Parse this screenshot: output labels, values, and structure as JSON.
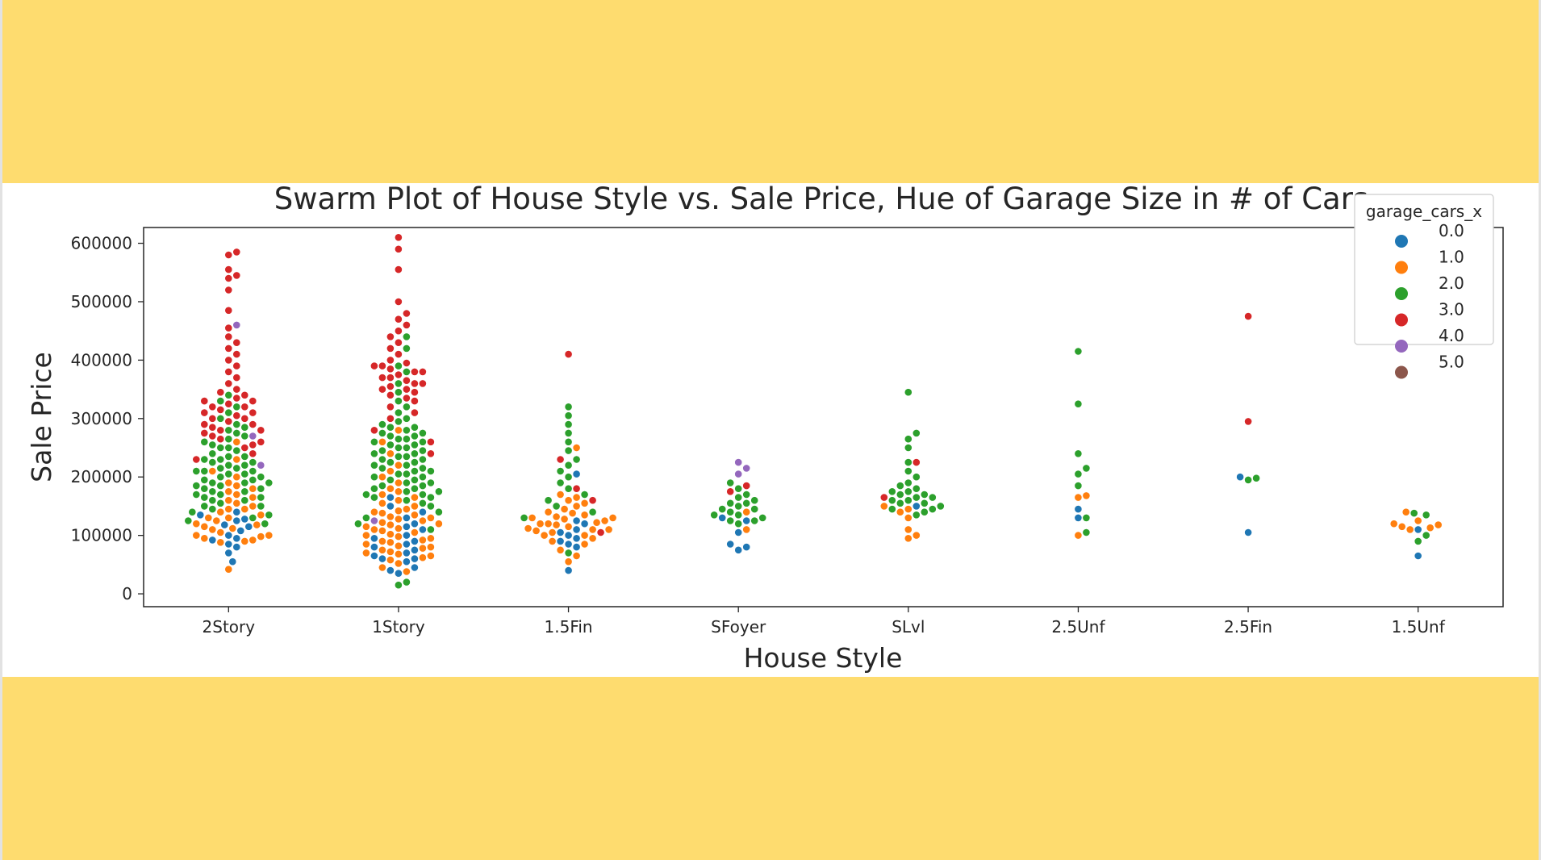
{
  "chart_data": {
    "type": "scatter",
    "subtype": "swarm",
    "title": "Swarm Plot of House Style vs. Sale Price, Hue of Garage Size in # of Cars",
    "xlabel": "House Style",
    "ylabel": "Sale Price",
    "categories": [
      "2Story",
      "1Story",
      "1.5Fin",
      "SFoyer",
      "SLvl",
      "2.5Unf",
      "2.5Fin",
      "1.5Unf"
    ],
    "yticks": [
      0,
      100000,
      200000,
      300000,
      400000,
      500000,
      600000
    ],
    "ytick_labels": [
      "0",
      "100000",
      "200000",
      "300000",
      "400000",
      "500000",
      "600000"
    ],
    "ylim": [
      -22000,
      627000
    ],
    "grid": false,
    "legend": {
      "title": "garage_cars_x",
      "placement": "top-right",
      "entries": [
        {
          "label": "0.0",
          "color": "#1f77b4"
        },
        {
          "label": "1.0",
          "color": "#ff7f0e"
        },
        {
          "label": "2.0",
          "color": "#2ca02c"
        },
        {
          "label": "3.0",
          "color": "#d62728"
        },
        {
          "label": "4.0",
          "color": "#9467bd"
        },
        {
          "label": "5.0",
          "color": "#8c564b"
        }
      ]
    },
    "distribution": [
      {
        "category": "2Story",
        "groups": [
          {
            "hue": "0.0",
            "values": [
              55000,
              70000,
              80000,
              92000,
              100000,
              108000,
              115000,
              125000,
              135000,
              140000,
              128000,
              118000,
              95000,
              85000
            ]
          },
          {
            "hue": "1.0",
            "values": [
              42000,
              88000,
              90000,
              92000,
              95000,
              98000,
              100000,
              105000,
              110000,
              112000,
              118000,
              120000,
              125000,
              130000,
              135000,
              140000,
              145000,
              150000,
              155000,
              160000,
              165000,
              170000,
              175000,
              180000,
              185000,
              190000,
              200000,
              210000,
              230000,
              260000,
              100000,
              115000,
              130000,
              145000
            ]
          },
          {
            "hue": "2.0",
            "values": [
              120000,
              125000,
              130000,
              135000,
              140000,
              145000,
              150000,
              155000,
              160000,
              165000,
              170000,
              175000,
              180000,
              185000,
              190000,
              195000,
              200000,
              205000,
              210000,
              215000,
              220000,
              225000,
              230000,
              235000,
              240000,
              245000,
              250000,
              255000,
              260000,
              265000,
              270000,
              275000,
              280000,
              285000,
              290000,
              300000,
              310000,
              320000,
              330000,
              340000,
              170000,
              180000,
              190000,
              200000,
              210000,
              220000,
              160000,
              175000,
              185000,
              195000,
              205000,
              215000,
              225000,
              235000,
              150000,
              165000,
              190000,
              210000,
              230000,
              250000
            ]
          },
          {
            "hue": "3.0",
            "values": [
              230000,
              240000,
              250000,
              255000,
              260000,
              265000,
              270000,
              275000,
              280000,
              285000,
              290000,
              295000,
              300000,
              305000,
              310000,
              315000,
              320000,
              325000,
              330000,
              335000,
              340000,
              345000,
              350000,
              360000,
              370000,
              380000,
              390000,
              400000,
              410000,
              420000,
              430000,
              440000,
              455000,
              485000,
              520000,
              540000,
              555000,
              585000,
              580000,
              545000,
              300000,
              310000,
              320000,
              330000,
              280000,
              290000
            ]
          },
          {
            "hue": "4.0",
            "values": [
              220000,
              270000,
              460000
            ]
          }
        ]
      },
      {
        "category": "1Story",
        "groups": [
          {
            "hue": "0.0",
            "values": [
              35000,
              40000,
              45000,
              55000,
              60000,
              65000,
              70000,
              80000,
              85000,
              90000,
              95000,
              100000,
              110000,
              115000,
              120000,
              130000,
              140000,
              150000,
              165000,
              60000,
              75000
            ]
          },
          {
            "hue": "1.0",
            "values": [
              38000,
              45000,
              52000,
              58000,
              62000,
              65000,
              68000,
              70000,
              72000,
              75000,
              78000,
              80000,
              82000,
              85000,
              88000,
              90000,
              92000,
              95000,
              98000,
              100000,
              102000,
              105000,
              108000,
              110000,
              112000,
              115000,
              118000,
              120000,
              122000,
              125000,
              128000,
              130000,
              132000,
              135000,
              138000,
              140000,
              142000,
              145000,
              150000,
              155000,
              160000,
              165000,
              170000,
              175000,
              180000,
              190000,
              200000,
              210000,
              220000,
              240000,
              260000,
              280000
            ]
          },
          {
            "hue": "2.0",
            "values": [
              15000,
              20000,
              110000,
              120000,
              130000,
              140000,
              150000,
              155000,
              160000,
              165000,
              170000,
              175000,
              180000,
              185000,
              190000,
              195000,
              200000,
              205000,
              210000,
              215000,
              220000,
              225000,
              230000,
              235000,
              240000,
              245000,
              250000,
              255000,
              260000,
              265000,
              270000,
              275000,
              280000,
              285000,
              290000,
              295000,
              300000,
              310000,
              320000,
              330000,
              345000,
              360000,
              380000,
              390000,
              420000,
              440000,
              165000,
              175000,
              185000,
              195000,
              205000,
              215000,
              225000,
              235000,
              245000,
              255000,
              265000,
              275000,
              285000,
              180000,
              200000,
              220000,
              240000,
              260000,
              170000,
              190000,
              210000,
              230000,
              250000,
              270000
            ]
          },
          {
            "hue": "3.0",
            "values": [
              240000,
              260000,
              280000,
              300000,
              310000,
              320000,
              330000,
              335000,
              340000,
              345000,
              350000,
              355000,
              360000,
              365000,
              370000,
              375000,
              380000,
              385000,
              390000,
              395000,
              400000,
              410000,
              420000,
              430000,
              440000,
              450000,
              460000,
              470000,
              480000,
              500000,
              555000,
              590000,
              610000,
              360000,
              370000,
              380000,
              390000,
              350000
            ]
          },
          {
            "hue": "4.0",
            "values": [
              125000
            ]
          }
        ]
      },
      {
        "category": "1.5Fin",
        "groups": [
          {
            "hue": "0.0",
            "values": [
              40000,
              80000,
              85000,
              90000,
              95000,
              100000,
              105000,
              110000,
              120000,
              125000,
              205000
            ]
          },
          {
            "hue": "1.0",
            "values": [
              55000,
              65000,
              75000,
              85000,
              90000,
              95000,
              100000,
              105000,
              108000,
              110000,
              112000,
              115000,
              118000,
              120000,
              122000,
              125000,
              128000,
              130000,
              132000,
              135000,
              138000,
              140000,
              145000,
              150000,
              155000,
              160000,
              165000,
              170000,
              250000,
              100000,
              110000,
              120000,
              130000
            ]
          },
          {
            "hue": "2.0",
            "values": [
              70000,
              130000,
              140000,
              150000,
              160000,
              170000,
              180000,
              190000,
              200000,
              210000,
              220000,
              230000,
              245000,
              260000,
              275000,
              290000,
              305000,
              320000
            ]
          },
          {
            "hue": "3.0",
            "values": [
              105000,
              160000,
              180000,
              230000,
              410000
            ]
          }
        ]
      },
      {
        "category": "SFoyer",
        "groups": [
          {
            "hue": "0.0",
            "values": [
              75000,
              80000,
              85000,
              105000,
              125000,
              130000
            ]
          },
          {
            "hue": "1.0",
            "values": [
              110000,
              140000
            ]
          },
          {
            "hue": "2.0",
            "values": [
              120000,
              125000,
              130000,
              135000,
              140000,
              145000,
              150000,
              155000,
              160000,
              165000,
              170000,
              180000,
              190000,
              125000,
              135000,
              145000,
              155000
            ]
          },
          {
            "hue": "3.0",
            "values": [
              175000,
              185000
            ]
          },
          {
            "hue": "4.0",
            "values": [
              205000,
              215000,
              225000
            ]
          }
        ]
      },
      {
        "category": "SLvl",
        "groups": [
          {
            "hue": "0.0",
            "values": [
              150000
            ]
          },
          {
            "hue": "1.0",
            "values": [
              95000,
              100000,
              110000,
              130000,
              140000,
              145000,
              150000
            ]
          },
          {
            "hue": "2.0",
            "values": [
              135000,
              140000,
              145000,
              150000,
              155000,
              160000,
              165000,
              170000,
              175000,
              180000,
              185000,
              190000,
              200000,
              210000,
              225000,
              250000,
              265000,
              275000,
              345000,
              155000,
              165000,
              175000,
              145000,
              160000,
              170000
            ]
          },
          {
            "hue": "3.0",
            "values": [
              165000,
              225000
            ]
          }
        ]
      },
      {
        "category": "2.5Unf",
        "groups": [
          {
            "hue": "0.0",
            "values": [
              130000,
              145000
            ]
          },
          {
            "hue": "1.0",
            "values": [
              100000,
              165000,
              168000
            ]
          },
          {
            "hue": "2.0",
            "values": [
              105000,
              130000,
              185000,
              205000,
              215000,
              240000,
              325000,
              415000
            ]
          }
        ]
      },
      {
        "category": "2.5Fin",
        "groups": [
          {
            "hue": "0.0",
            "values": [
              105000,
              200000
            ]
          },
          {
            "hue": "2.0",
            "values": [
              195000,
              198000
            ]
          },
          {
            "hue": "3.0",
            "values": [
              295000,
              475000
            ]
          }
        ]
      },
      {
        "category": "1.5Unf",
        "groups": [
          {
            "hue": "0.0",
            "values": [
              65000,
              110000
            ]
          },
          {
            "hue": "1.0",
            "values": [
              110000,
              113000,
              115000,
              118000,
              120000,
              125000,
              140000
            ]
          },
          {
            "hue": "2.0",
            "values": [
              90000,
              100000,
              135000,
              138000
            ]
          }
        ]
      }
    ]
  }
}
